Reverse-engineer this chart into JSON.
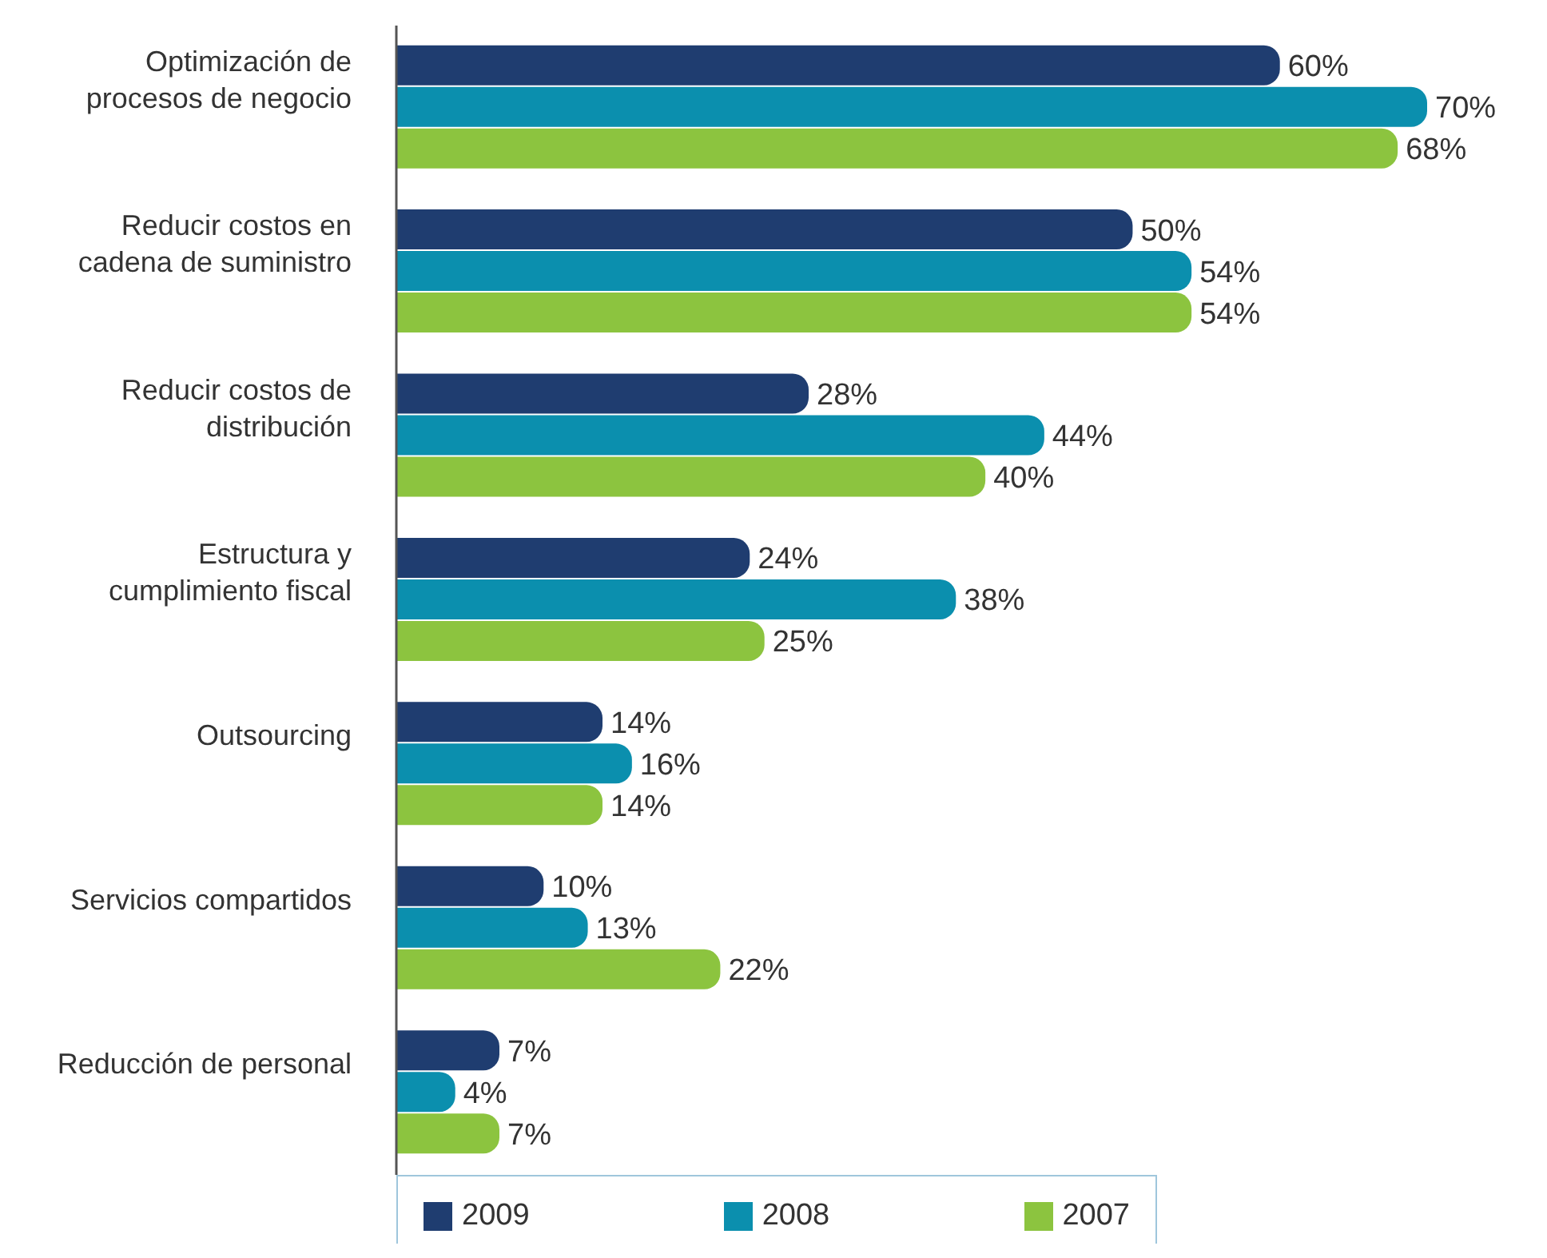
{
  "chart_data": {
    "type": "bar",
    "orientation": "horizontal",
    "categories": [
      "Optimización de procesos de negocio",
      "Reducir costos en cadena de suministro",
      "Reducir costos de distribución",
      "Estructura y cumplimiento fiscal",
      "Outsourcing",
      "Servicios compartidos",
      "Reducción de personal"
    ],
    "series": [
      {
        "name": "2009",
        "color": "#1f3d70",
        "values": [
          60,
          50,
          28,
          24,
          14,
          10,
          7
        ],
        "value_labels": [
          "60%",
          "50%",
          "28%",
          "24%",
          "14%",
          "10%",
          "7%"
        ]
      },
      {
        "name": "2008",
        "color": "#0b8fae",
        "values": [
          70,
          54,
          44,
          38,
          16,
          13,
          4
        ],
        "value_labels": [
          "70%",
          "54%",
          "44%",
          "38%",
          "16%",
          "13%",
          "4%"
        ]
      },
      {
        "name": "2007",
        "color": "#8cc43f",
        "values": [
          68,
          54,
          40,
          25,
          14,
          22,
          7
        ],
        "value_labels": [
          "68%",
          "54%",
          "40%",
          "25%",
          "14%",
          "22%",
          "7%"
        ]
      }
    ],
    "legend": "bottom",
    "grid": false
  }
}
